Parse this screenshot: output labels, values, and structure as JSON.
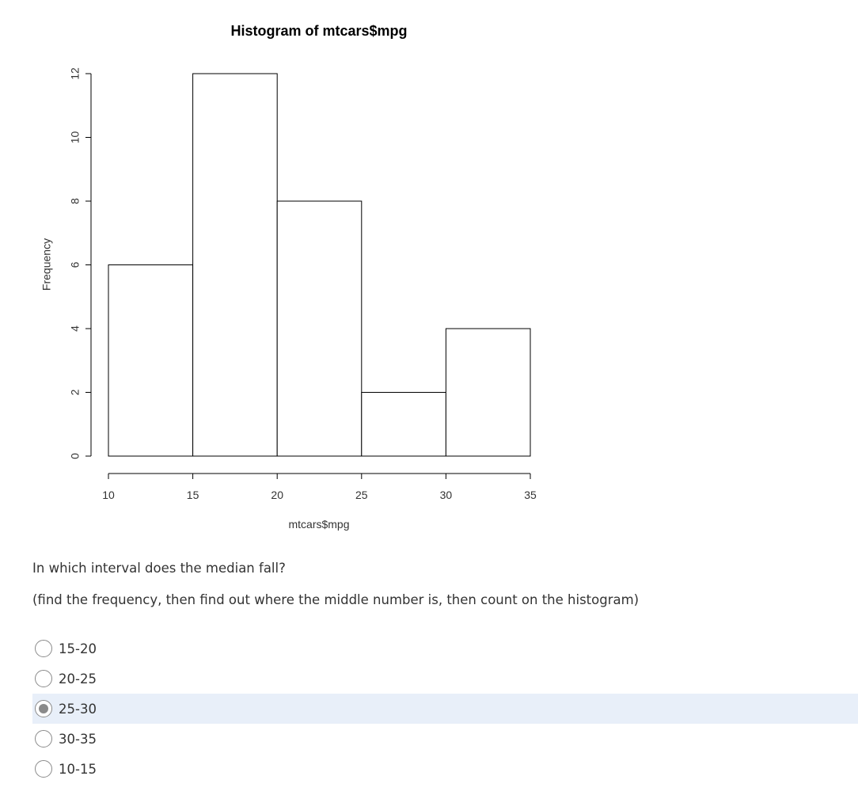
{
  "chart_data": {
    "type": "bar",
    "title": "Histogram of mtcars$mpg",
    "xlabel": "mtcars$mpg",
    "ylabel": "Frequency",
    "bins": [
      [
        10,
        15
      ],
      [
        15,
        20
      ],
      [
        20,
        25
      ],
      [
        25,
        30
      ],
      [
        30,
        35
      ]
    ],
    "values": [
      6,
      12,
      8,
      2,
      4
    ],
    "xticks": [
      10,
      15,
      20,
      25,
      30,
      35
    ],
    "yticks": [
      0,
      2,
      4,
      6,
      8,
      10,
      12
    ],
    "xlim": [
      10,
      35
    ],
    "ylim": [
      0,
      12
    ]
  },
  "question": {
    "prompt": "In which interval does the median fall?",
    "hint": "(find the frequency, then find out where the middle number is, then count on the histogram)",
    "options": [
      {
        "label": "15-20",
        "selected": false
      },
      {
        "label": "20-25",
        "selected": false
      },
      {
        "label": "25-30",
        "selected": true
      },
      {
        "label": "30-35",
        "selected": false
      },
      {
        "label": "10-15",
        "selected": false
      }
    ]
  }
}
